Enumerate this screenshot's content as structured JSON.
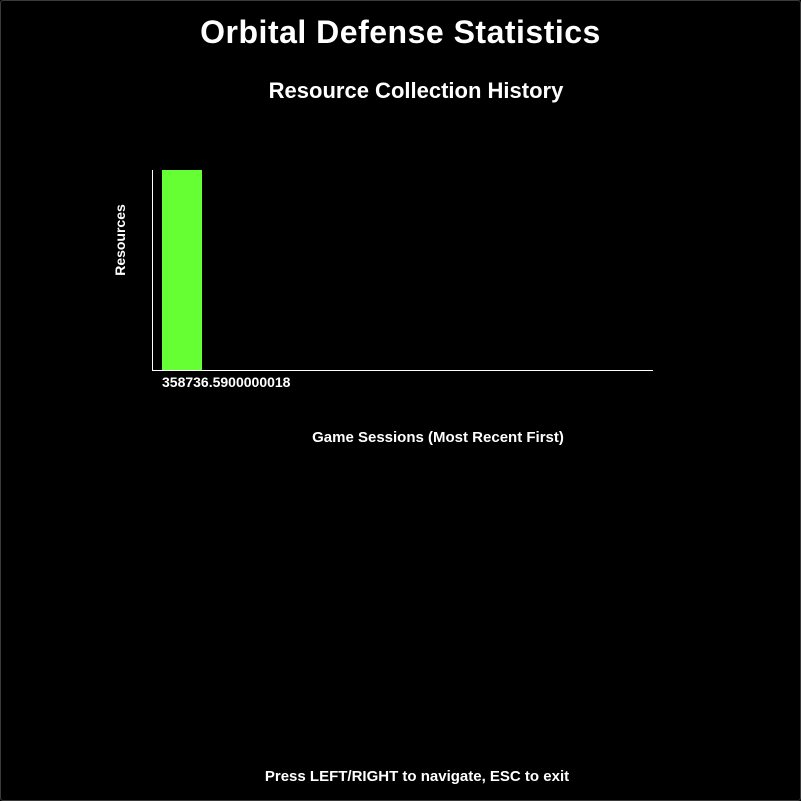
{
  "screen": {
    "title": "Orbital Defense Statistics",
    "subtitle": "Resource Collection History",
    "footer_hint": "Press LEFT/RIGHT to navigate, ESC to exit"
  },
  "colors": {
    "background": "#000000",
    "text": "#ffffff",
    "bar": "#66ff33",
    "axis": "#ffffff"
  },
  "chart_data": {
    "type": "bar",
    "title": "Resource Collection History",
    "xlabel": "Game Sessions (Most Recent First)",
    "ylabel": "Resources",
    "categories": [
      "358736.5900000018"
    ],
    "values": [
      358736.5900000018
    ],
    "ylim": [
      0,
      358736.5900000018
    ],
    "max_bars": 10,
    "grid": false,
    "legend": "none"
  }
}
